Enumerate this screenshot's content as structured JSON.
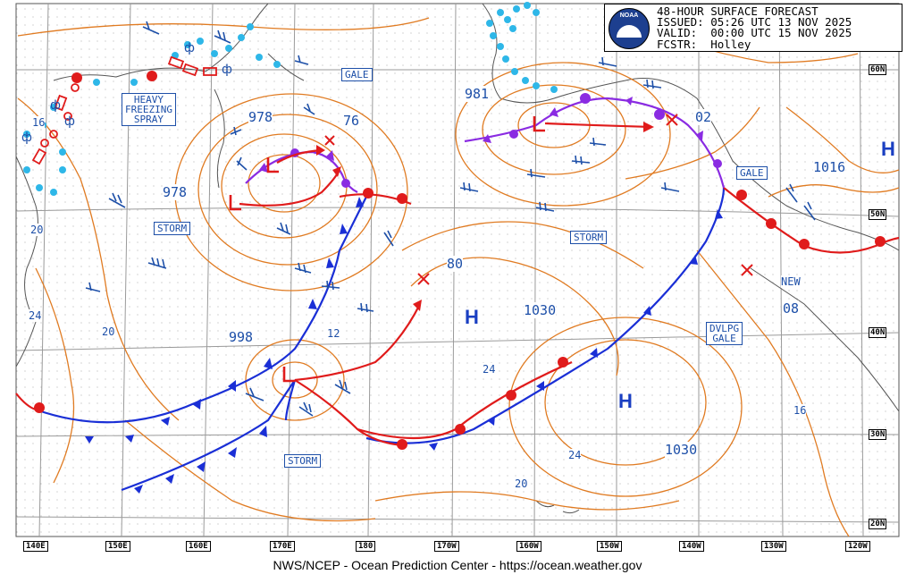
{
  "header": {
    "logo_text": "NOAA",
    "line1": "48-HOUR SURFACE FORECAST",
    "line2": "ISSUED: 05:26 UTC 13 NOV 2025",
    "line3": "VALID:  00:00 UTC 15 NOV 2025",
    "line4": "FCSTR:  Holley"
  },
  "footer": "NWS/NCEP - Ocean Prediction Center - https://ocean.weather.gov",
  "latitude_labels": [
    "60N",
    "50N",
    "40N",
    "30N",
    "20N"
  ],
  "longitude_labels": [
    "140E",
    "150E",
    "160E",
    "170E",
    "180",
    "170W",
    "160W",
    "150W",
    "140W",
    "130W",
    "120W"
  ],
  "warnings": [
    "GALE",
    "HEAVY\nFREEZING\nSPRAY",
    "STORM",
    "STORM",
    "STORM",
    "GALE",
    "DVLPG\nGALE"
  ],
  "pressure_labels": [
    "978",
    "76",
    "978",
    "981",
    "02",
    "1016",
    "80",
    "1030",
    "998",
    "12",
    "1030",
    "NEW",
    "08"
  ],
  "centers": {
    "low": "L",
    "high": "H"
  },
  "contour_labels": [
    "16",
    "20",
    "24",
    "20",
    "24",
    "24",
    "20",
    "16"
  ],
  "colors": {
    "isobar": "#e07b22",
    "cold_front": "#1a2fd6",
    "warm_front": "#e01b1b",
    "occluded_front": "#8a2be2",
    "track_arrow": "#e01b1b",
    "label_blue": "#1d4fa8",
    "grid": "#aaaaaa"
  },
  "icons": [
    "noaa-logo",
    "ice-accretion-icon",
    "sea-ice-edge-icon",
    "wind-barb-icon"
  ]
}
